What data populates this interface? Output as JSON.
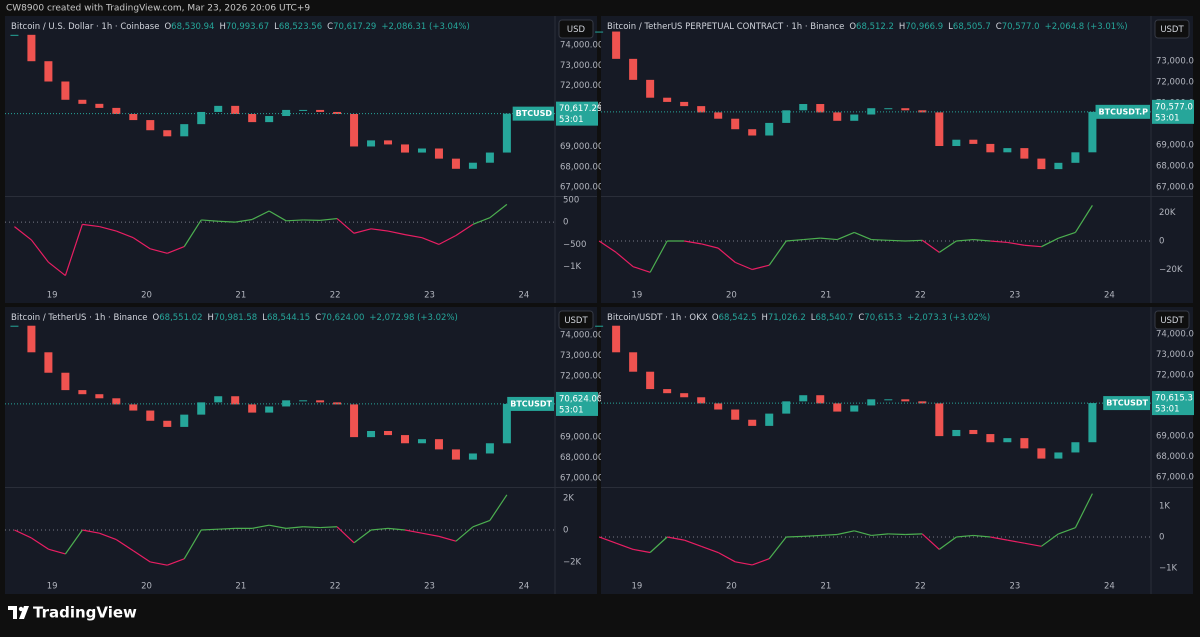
{
  "header": {
    "text": "CW8900 created with TradingView.com, Mar 23, 2026 20:06 UTC+9"
  },
  "chart_data": [
    {
      "type": "candlestick",
      "title": "Bitcoin / U.S. Dollar · 1h · Coinbase",
      "ohlc": [
        {
          "key": "O",
          "value": "68,530.94"
        },
        {
          "key": "H",
          "value": "70,993.67"
        },
        {
          "key": "L",
          "value": "68,523.56"
        },
        {
          "key": "C",
          "value": "70,617.29"
        }
      ],
      "change": "+2,086.31 (+3.04%)",
      "currency": "USD",
      "up_color": "#26a69a",
      "down_color": "#ef5350",
      "x": [
        18.6,
        18.78,
        18.96,
        19.14,
        19.32,
        19.5,
        19.68,
        19.86,
        20.04,
        20.22,
        20.4,
        20.58,
        20.76,
        20.94,
        21.12,
        21.3,
        21.48,
        21.66,
        21.84,
        22.02,
        22.2,
        22.38,
        22.56,
        22.74,
        22.92,
        23.1,
        23.28,
        23.46,
        23.64,
        23.82
      ],
      "values": [
        74500,
        73200,
        72200,
        71300,
        71100,
        70900,
        70600,
        70300,
        69800,
        69500,
        70100,
        70700,
        71000,
        70600,
        70200,
        70500,
        70800,
        70800,
        70700,
        70600,
        69000,
        69300,
        69100,
        68700,
        68900,
        68400,
        67900,
        68200,
        68700,
        70617.29
      ],
      "xlim": [
        18.5,
        24.33
      ],
      "xticks": [
        19,
        20,
        21,
        22,
        23,
        24
      ],
      "ylim": [
        66560,
        75230
      ],
      "yticks": [
        {
          "value": 74000,
          "label": "74,000.00"
        },
        {
          "value": 73000,
          "label": "73,000.00"
        },
        {
          "value": 72000,
          "label": "72,000.00"
        },
        {
          "value": 71000,
          "label": "71,000.00"
        },
        {
          "value": 69000,
          "label": "69,000.00"
        },
        {
          "value": 68000,
          "label": "68,000.00"
        },
        {
          "value": 67000,
          "label": "67,000.00"
        }
      ],
      "price_tag": {
        "symbol": "BTCUSD",
        "price": {
          "value": 70617.29,
          "label": "70,617.29"
        },
        "countdown": "53:01"
      },
      "indicator": {
        "values": [
          -100,
          -400,
          -900,
          -1200,
          -50,
          -100,
          -200,
          -350,
          -600,
          -700,
          -550,
          50,
          20,
          0,
          60,
          250,
          30,
          50,
          40,
          80,
          -250,
          -150,
          -200,
          -280,
          -350,
          -500,
          -300,
          -50,
          100,
          400
        ],
        "ylim": [
          -1435,
          565
        ],
        "yticks": [
          500,
          0,
          {
            "value": -500,
            "label": "−500"
          },
          {
            "value": -1000,
            "label": "−1K"
          }
        ],
        "pos_color": "#4caf50",
        "neg_color": "#e91e63"
      }
    },
    {
      "type": "candlestick",
      "title": "Bitcoin / TetherUS PERPETUAL CONTRACT · 1h · Binance",
      "ohlc": [
        {
          "key": "O",
          "value": "68,512.2"
        },
        {
          "key": "H",
          "value": "70,966.9"
        },
        {
          "key": "L",
          "value": "68,505.7"
        },
        {
          "key": "C",
          "value": "70,577.0"
        }
      ],
      "change": "+2,064.8 (+3.01%)",
      "currency": "USDT",
      "up_color": "#26a69a",
      "down_color": "#ef5350",
      "x": [
        18.6,
        18.78,
        18.96,
        19.14,
        19.32,
        19.5,
        19.68,
        19.86,
        20.04,
        20.22,
        20.4,
        20.58,
        20.76,
        20.94,
        21.12,
        21.3,
        21.48,
        21.66,
        21.84,
        22.02,
        22.2,
        22.38,
        22.56,
        22.74,
        22.92,
        23.1,
        23.28,
        23.46,
        23.64,
        23.82
      ],
      "values": [
        74400,
        73100,
        72100,
        71250,
        71050,
        70850,
        70550,
        70250,
        69750,
        69450,
        70050,
        70650,
        70950,
        70550,
        70150,
        70450,
        70750,
        70750,
        70650,
        70550,
        68950,
        69250,
        69050,
        68650,
        68850,
        68350,
        67850,
        68150,
        68650,
        70577.0
      ],
      "xlim": [
        18.62,
        24.44
      ],
      "xticks": [
        19,
        20,
        21,
        22,
        23,
        24
      ],
      "ylim": [
        66570,
        74950
      ],
      "yticks": [
        {
          "value": 73000,
          "label": "73,000.0"
        },
        {
          "value": 72000,
          "label": "72,000.0"
        },
        {
          "value": 71000,
          "label": "71,000.0"
        },
        {
          "value": 69000,
          "label": "69,000.0"
        },
        {
          "value": 68000,
          "label": "68,000.0"
        },
        {
          "value": 67000,
          "label": "67,000.0"
        }
      ],
      "price_tag": {
        "symbol": "BTCUSDT.P",
        "price": {
          "value": 70577.0,
          "label": "70,577.0"
        },
        "countdown": "53:01"
      },
      "indicator": {
        "values": [
          0,
          -8000,
          -18000,
          -22000,
          0,
          0,
          -2000,
          -5000,
          -15000,
          -20000,
          -17000,
          0,
          1000,
          2000,
          1000,
          6000,
          1000,
          500,
          0,
          500,
          -8000,
          0,
          1000,
          0,
          -1000,
          -3000,
          -4000,
          2000,
          6000,
          25000
        ],
        "ylim": [
          -31580,
          30880
        ],
        "yticks": [
          {
            "value": 20000,
            "label": "20K"
          },
          0,
          {
            "value": -20000,
            "label": "−20K"
          }
        ],
        "pos_color": "#4caf50",
        "neg_color": "#e91e63"
      }
    },
    {
      "type": "candlestick",
      "title": "Bitcoin / TetherUS · 1h · Binance",
      "ohlc": [
        {
          "key": "O",
          "value": "68,551.02"
        },
        {
          "key": "H",
          "value": "70,981.58"
        },
        {
          "key": "L",
          "value": "68,544.15"
        },
        {
          "key": "C",
          "value": "70,624.00"
        }
      ],
      "change": "+2,072.98 (+3.02%)",
      "currency": "USDT",
      "up_color": "#26a69a",
      "down_color": "#ef5350",
      "x": [
        18.6,
        18.78,
        18.96,
        19.14,
        19.32,
        19.5,
        19.68,
        19.86,
        20.04,
        20.22,
        20.4,
        20.58,
        20.76,
        20.94,
        21.12,
        21.3,
        21.48,
        21.66,
        21.84,
        22.02,
        22.2,
        22.38,
        22.56,
        22.74,
        22.92,
        23.1,
        23.28,
        23.46,
        23.64,
        23.82
      ],
      "values": [
        74450,
        73150,
        72150,
        71300,
        71100,
        70900,
        70600,
        70300,
        69800,
        69500,
        70100,
        70700,
        71000,
        70600,
        70200,
        70500,
        70800,
        70800,
        70700,
        70600,
        69000,
        69300,
        69100,
        68700,
        68900,
        68400,
        67900,
        68200,
        68700,
        70624.0
      ],
      "xlim": [
        18.5,
        24.33
      ],
      "xticks": [
        19,
        20,
        21,
        22,
        23,
        24
      ],
      "ylim": [
        66560,
        75170
      ],
      "yticks": [
        {
          "value": 74000,
          "label": "74,000.00"
        },
        {
          "value": 73000,
          "label": "73,000.00"
        },
        {
          "value": 72000,
          "label": "72,000.00"
        },
        {
          "value": 71000,
          "label": "71,000.00"
        },
        {
          "value": 69000,
          "label": "69,000.00"
        },
        {
          "value": 68000,
          "label": "68,000.00"
        },
        {
          "value": 67000,
          "label": "67,000.00"
        }
      ],
      "price_tag": {
        "symbol": "BTCUSDT",
        "price": {
          "value": 70624.0,
          "label": "70,624.00"
        },
        "countdown": "53:01"
      },
      "indicator": {
        "values": [
          0,
          -500,
          -1200,
          -1500,
          0,
          -200,
          -600,
          -1300,
          -2000,
          -2200,
          -1800,
          0,
          50,
          100,
          100,
          300,
          100,
          200,
          150,
          200,
          -800,
          0,
          100,
          0,
          -200,
          -400,
          -700,
          200,
          600,
          2200
        ],
        "ylim": [
          -2940,
          2625
        ],
        "yticks": [
          {
            "value": 2000,
            "label": "2K"
          },
          0,
          {
            "value": -2000,
            "label": "−2K"
          }
        ],
        "pos_color": "#4caf50",
        "neg_color": "#e91e63"
      }
    },
    {
      "type": "candlestick",
      "title": "Bitcoin/USDT · 1h · OKX",
      "ohlc": [
        {
          "key": "O",
          "value": "68,542.5"
        },
        {
          "key": "H",
          "value": "71,026.2"
        },
        {
          "key": "L",
          "value": "68,540.7"
        },
        {
          "key": "C",
          "value": "70,615.3"
        }
      ],
      "change": "+2,073.3 (+3.02%)",
      "currency": "USDT",
      "up_color": "#26a69a",
      "down_color": "#ef5350",
      "x": [
        18.6,
        18.78,
        18.96,
        19.14,
        19.32,
        19.5,
        19.68,
        19.86,
        20.04,
        20.22,
        20.4,
        20.58,
        20.76,
        20.94,
        21.12,
        21.3,
        21.48,
        21.66,
        21.84,
        22.02,
        22.2,
        22.38,
        22.56,
        22.74,
        22.92,
        23.1,
        23.28,
        23.46,
        23.64,
        23.82
      ],
      "values": [
        74400,
        73100,
        72150,
        71300,
        71100,
        70900,
        70600,
        70300,
        69800,
        69500,
        70100,
        70700,
        71000,
        70600,
        70200,
        70500,
        70800,
        70800,
        70700,
        70600,
        69000,
        69300,
        69100,
        68700,
        68900,
        68400,
        67900,
        68200,
        68700,
        70615.3
      ],
      "xlim": [
        18.62,
        24.44
      ],
      "xticks": [
        19,
        20,
        21,
        22,
        23,
        24
      ],
      "ylim": [
        66510,
        75120
      ],
      "yticks": [
        {
          "value": 74000,
          "label": "74,000.0"
        },
        {
          "value": 73000,
          "label": "73,000.0"
        },
        {
          "value": 72000,
          "label": "72,000.0"
        },
        {
          "value": 71000,
          "label": "71,000.0"
        },
        {
          "value": 69000,
          "label": "69,000.0"
        },
        {
          "value": 68000,
          "label": "68,000.0"
        },
        {
          "value": 67000,
          "label": "67,000.0"
        }
      ],
      "price_tag": {
        "symbol": "BTCUSDT",
        "price": {
          "value": 70615.3,
          "label": "70,615.3"
        },
        "countdown": "53:01"
      },
      "indicator": {
        "values": [
          0,
          -200,
          -400,
          -500,
          0,
          -100,
          -300,
          -500,
          -800,
          -900,
          -700,
          0,
          20,
          50,
          80,
          200,
          50,
          100,
          80,
          100,
          -400,
          0,
          50,
          0,
          -100,
          -200,
          -300,
          100,
          300,
          1400
        ],
        "ylim": [
          -1290,
          1580
        ],
        "yticks": [
          {
            "value": 1000,
            "label": "1K"
          },
          0,
          {
            "value": -1000,
            "label": "−1K"
          }
        ],
        "pos_color": "#4caf50",
        "neg_color": "#e91e63"
      }
    }
  ],
  "footer": {
    "brand": "TradingView"
  }
}
